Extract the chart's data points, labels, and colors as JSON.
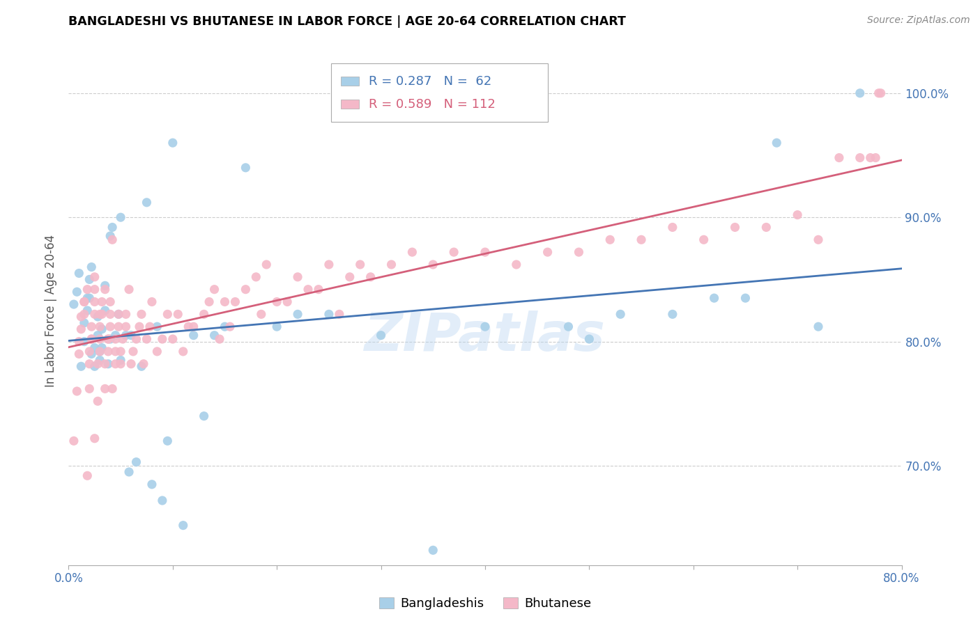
{
  "title": "BANGLADESHI VS BHUTANESE IN LABOR FORCE | AGE 20-64 CORRELATION CHART",
  "source": "Source: ZipAtlas.com",
  "ylabel": "In Labor Force | Age 20-64",
  "xlim": [
    0.0,
    0.8
  ],
  "ylim": [
    0.62,
    1.03
  ],
  "yticks": [
    0.7,
    0.8,
    0.9,
    1.0
  ],
  "ytick_labels": [
    "70.0%",
    "80.0%",
    "90.0%",
    "100.0%"
  ],
  "xticks": [
    0.0,
    0.1,
    0.2,
    0.3,
    0.4,
    0.5,
    0.6,
    0.7,
    0.8
  ],
  "xtick_labels": [
    "0.0%",
    "",
    "",
    "",
    "",
    "",
    "",
    "",
    "80.0%"
  ],
  "blue_R": 0.287,
  "blue_N": 62,
  "pink_R": 0.589,
  "pink_N": 112,
  "blue_color": "#a8cfe8",
  "pink_color": "#f4b8c8",
  "blue_line_color": "#4475b4",
  "pink_line_color": "#d45f7a",
  "watermark": "ZIPatlas",
  "blue_scatter_x": [
    0.005,
    0.008,
    0.01,
    0.012,
    0.015,
    0.015,
    0.018,
    0.018,
    0.02,
    0.02,
    0.022,
    0.022,
    0.025,
    0.025,
    0.028,
    0.028,
    0.03,
    0.03,
    0.032,
    0.032,
    0.035,
    0.035,
    0.038,
    0.04,
    0.04,
    0.042,
    0.045,
    0.048,
    0.05,
    0.05,
    0.055,
    0.058,
    0.06,
    0.065,
    0.07,
    0.075,
    0.08,
    0.085,
    0.09,
    0.095,
    0.1,
    0.11,
    0.12,
    0.13,
    0.14,
    0.15,
    0.17,
    0.2,
    0.22,
    0.25,
    0.3,
    0.35,
    0.4,
    0.48,
    0.5,
    0.53,
    0.58,
    0.62,
    0.65,
    0.68,
    0.72,
    0.76
  ],
  "blue_scatter_y": [
    0.83,
    0.84,
    0.855,
    0.78,
    0.8,
    0.815,
    0.825,
    0.835,
    0.835,
    0.85,
    0.86,
    0.79,
    0.78,
    0.795,
    0.805,
    0.82,
    0.792,
    0.785,
    0.795,
    0.81,
    0.825,
    0.845,
    0.782,
    0.802,
    0.885,
    0.892,
    0.805,
    0.822,
    0.9,
    0.785,
    0.805,
    0.695,
    0.805,
    0.703,
    0.78,
    0.912,
    0.685,
    0.812,
    0.672,
    0.72,
    0.96,
    0.652,
    0.805,
    0.74,
    0.805,
    0.812,
    0.94,
    0.812,
    0.822,
    0.822,
    0.805,
    0.632,
    0.812,
    0.812,
    0.802,
    0.822,
    0.822,
    0.835,
    0.835,
    0.96,
    0.812,
    1.0
  ],
  "pink_scatter_x": [
    0.005,
    0.008,
    0.01,
    0.01,
    0.012,
    0.012,
    0.015,
    0.015,
    0.015,
    0.018,
    0.018,
    0.02,
    0.02,
    0.02,
    0.022,
    0.022,
    0.022,
    0.025,
    0.025,
    0.025,
    0.025,
    0.025,
    0.028,
    0.028,
    0.03,
    0.03,
    0.03,
    0.03,
    0.032,
    0.032,
    0.035,
    0.035,
    0.035,
    0.038,
    0.038,
    0.038,
    0.04,
    0.04,
    0.04,
    0.042,
    0.042,
    0.045,
    0.045,
    0.045,
    0.048,
    0.048,
    0.05,
    0.05,
    0.052,
    0.055,
    0.055,
    0.058,
    0.06,
    0.062,
    0.065,
    0.068,
    0.07,
    0.072,
    0.075,
    0.078,
    0.08,
    0.085,
    0.09,
    0.095,
    0.1,
    0.105,
    0.11,
    0.115,
    0.12,
    0.13,
    0.135,
    0.14,
    0.145,
    0.15,
    0.155,
    0.16,
    0.17,
    0.18,
    0.185,
    0.19,
    0.2,
    0.21,
    0.22,
    0.23,
    0.24,
    0.25,
    0.26,
    0.27,
    0.28,
    0.29,
    0.31,
    0.33,
    0.35,
    0.37,
    0.4,
    0.43,
    0.46,
    0.49,
    0.52,
    0.55,
    0.58,
    0.61,
    0.64,
    0.67,
    0.7,
    0.72,
    0.74,
    0.76,
    0.77,
    0.775,
    0.778,
    0.78
  ],
  "pink_scatter_y": [
    0.72,
    0.76,
    0.79,
    0.8,
    0.81,
    0.82,
    0.822,
    0.832,
    0.832,
    0.842,
    0.692,
    0.762,
    0.782,
    0.792,
    0.802,
    0.802,
    0.812,
    0.822,
    0.832,
    0.842,
    0.852,
    0.722,
    0.752,
    0.782,
    0.792,
    0.802,
    0.812,
    0.822,
    0.822,
    0.832,
    0.842,
    0.762,
    0.782,
    0.792,
    0.802,
    0.802,
    0.812,
    0.822,
    0.832,
    0.882,
    0.762,
    0.782,
    0.792,
    0.802,
    0.812,
    0.822,
    0.782,
    0.792,
    0.802,
    0.812,
    0.822,
    0.842,
    0.782,
    0.792,
    0.802,
    0.812,
    0.822,
    0.782,
    0.802,
    0.812,
    0.832,
    0.792,
    0.802,
    0.822,
    0.802,
    0.822,
    0.792,
    0.812,
    0.812,
    0.822,
    0.832,
    0.842,
    0.802,
    0.832,
    0.812,
    0.832,
    0.842,
    0.852,
    0.822,
    0.862,
    0.832,
    0.832,
    0.852,
    0.842,
    0.842,
    0.862,
    0.822,
    0.852,
    0.862,
    0.852,
    0.862,
    0.872,
    0.862,
    0.872,
    0.872,
    0.862,
    0.872,
    0.872,
    0.882,
    0.882,
    0.892,
    0.882,
    0.892,
    0.892,
    0.902,
    0.882,
    0.948,
    0.948,
    0.948,
    0.948,
    1.0,
    1.0
  ]
}
